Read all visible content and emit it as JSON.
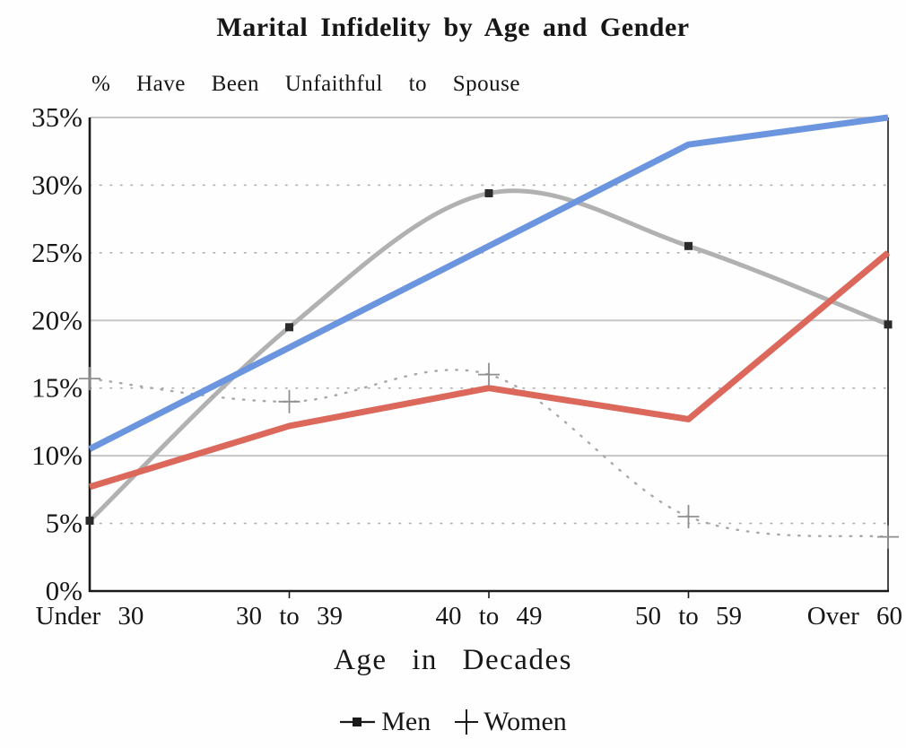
{
  "title": "Marital Infidelity by Age and Gender",
  "subtitle": "% Have Been Unfaithful to Spouse",
  "x_axis_title": "Age in Decades",
  "legend": {
    "men_label": "Men",
    "women_label": "Women"
  },
  "colors": {
    "blue_line": "#6c95e0",
    "red_line": "#dc685c",
    "gray_line": "#b1b1b1",
    "dotted_gray": "#a8a8a8",
    "marker_dark": "#2a2a2a",
    "marker_plus": "#8f8f8f",
    "axis": "#1a1a1a",
    "gridline_solid": "#c6c6c6",
    "gridline_dotted": "#adadad",
    "text": "#161616",
    "background": "#fefefe"
  },
  "chart_data": {
    "type": "line",
    "title": "Marital Infidelity by Age and Gender",
    "ylabel": "% Have Been Unfaithful to Spouse",
    "xlabel": "Age in Decades",
    "categories": [
      "Under 30",
      "30 to 39",
      "40 to 49",
      "50 to 59",
      "Over 60"
    ],
    "y_ticks": [
      "0%",
      "5%",
      "10%",
      "15%",
      "20%",
      "25%",
      "30%",
      "35%"
    ],
    "ylim": [
      0,
      35
    ],
    "grid": "horizontal",
    "solid_gridlines": [
      35,
      20,
      10
    ],
    "dotted_gridlines": [
      30,
      25,
      15,
      5
    ],
    "legend_position": "bottom",
    "series": [
      {
        "name": "Men",
        "in_legend": true,
        "style": "solid-smooth",
        "color": "gray",
        "marker": "square",
        "values": [
          5.2,
          19.5,
          29.4,
          25.5,
          19.7
        ]
      },
      {
        "name": "Women",
        "in_legend": true,
        "style": "dotted-smooth",
        "color": "gray",
        "marker": "plus",
        "values": [
          15.7,
          14,
          16,
          5.5,
          4
        ]
      },
      {
        "name": "blue overlay line",
        "in_legend": false,
        "style": "solid",
        "color": "blue",
        "marker": "none",
        "values": [
          10.5,
          18,
          25.5,
          33,
          35
        ]
      },
      {
        "name": "red overlay line",
        "in_legend": false,
        "style": "solid",
        "color": "red",
        "marker": "none",
        "values": [
          7.7,
          12.2,
          15,
          12.7,
          25
        ]
      }
    ]
  }
}
